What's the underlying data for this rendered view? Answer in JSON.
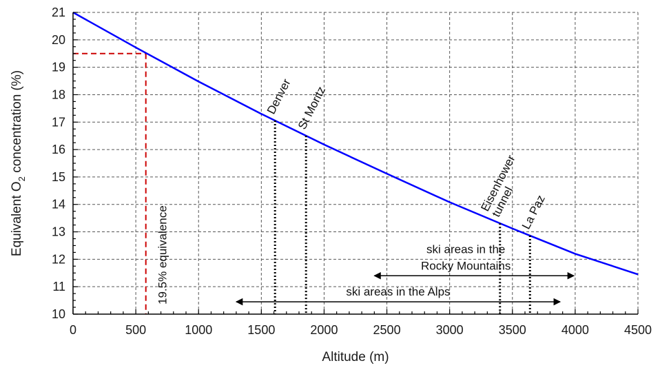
{
  "chart_data": {
    "type": "line",
    "xlabel": "Altitude (m)",
    "ylabel": {
      "before": "Equivalent O",
      "sub": "2",
      "after": " concentration (%)"
    },
    "xlim": [
      0,
      4500
    ],
    "ylim": [
      10,
      21
    ],
    "x_ticks": [
      0,
      500,
      1000,
      1500,
      2000,
      2500,
      3000,
      3500,
      4000,
      4500
    ],
    "y_ticks": [
      10,
      11,
      12,
      13,
      14,
      15,
      16,
      17,
      18,
      19,
      20,
      21
    ],
    "grid": true,
    "series": [
      {
        "color": "#0000ff",
        "x": [
          0,
          500,
          1000,
          1500,
          2000,
          2500,
          3000,
          3500,
          4000,
          4500
        ],
        "y": [
          21.0,
          19.72,
          18.48,
          17.3,
          16.18,
          15.12,
          14.08,
          13.12,
          12.2,
          11.45
        ]
      }
    ],
    "threshold": {
      "label": "19.5% equivalence",
      "y": 19.5,
      "x": 580,
      "color": "#cc0000"
    },
    "places": [
      {
        "label": "Denver",
        "x": 1609,
        "y": 17.0
      },
      {
        "label": "St Moritz",
        "x": 1856,
        "y": 16.5
      },
      {
        "label": "Eisenhower tunnel",
        "lines": [
          "Eisenhower",
          "tunnel"
        ],
        "x": 3401,
        "y": 13.2
      },
      {
        "label": "La Paz",
        "x": 3640,
        "y": 13.0
      }
    ],
    "ranges": [
      {
        "label_lines": [
          "ski areas in the",
          "Rocky Mountains"
        ],
        "from": 2400,
        "to": 3990,
        "y": 11.4
      },
      {
        "label_lines": [
          "ski areas in the Alps"
        ],
        "from": 1300,
        "to": 3880,
        "y": 10.45
      }
    ]
  }
}
